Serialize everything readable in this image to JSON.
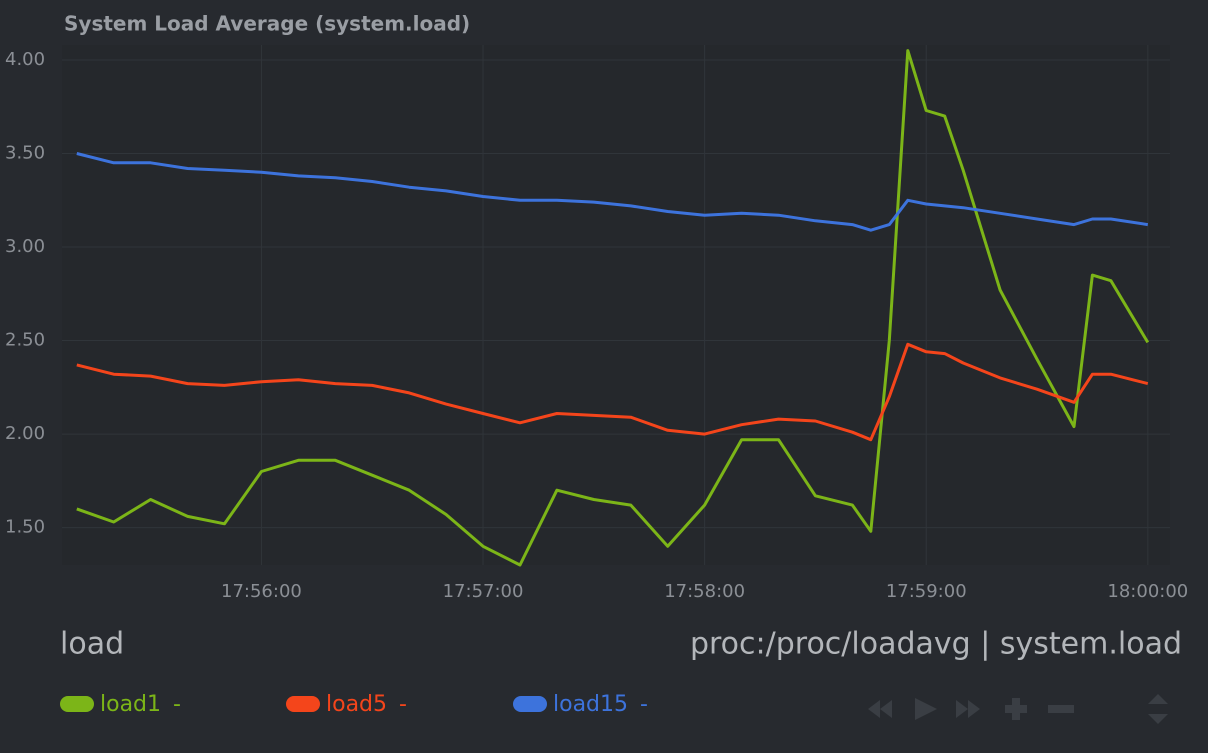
{
  "chart_data": {
    "type": "line",
    "title": "System Load Average (system.load)",
    "units": "load",
    "source": "proc:/proc/loadavg | system.load",
    "x": [
      "17:55:10",
      "17:55:20",
      "17:55:30",
      "17:55:40",
      "17:55:50",
      "17:56:00",
      "17:56:10",
      "17:56:20",
      "17:56:30",
      "17:56:40",
      "17:56:50",
      "17:57:00",
      "17:57:10",
      "17:57:20",
      "17:57:30",
      "17:57:40",
      "17:57:50",
      "17:58:00",
      "17:58:10",
      "17:58:20",
      "17:58:30",
      "17:58:40",
      "17:58:45",
      "17:58:50",
      "17:58:55",
      "17:59:00",
      "17:59:05",
      "17:59:10",
      "17:59:20",
      "17:59:30",
      "17:59:40",
      "17:59:45",
      "17:59:50",
      "18:00:00"
    ],
    "series": [
      {
        "name": "load1",
        "current": "-",
        "color": "#7cb518",
        "values": [
          1.6,
          1.53,
          1.65,
          1.56,
          1.52,
          1.8,
          1.86,
          1.86,
          1.78,
          1.7,
          1.57,
          1.4,
          1.3,
          1.7,
          1.65,
          1.62,
          1.4,
          1.62,
          1.97,
          1.97,
          1.67,
          1.62,
          1.48,
          2.5,
          4.05,
          3.73,
          3.7,
          3.41,
          2.77,
          2.4,
          2.04,
          2.85,
          2.82,
          2.49
        ]
      },
      {
        "name": "load5",
        "current": "-",
        "color": "#f4451b",
        "values": [
          2.37,
          2.32,
          2.31,
          2.27,
          2.26,
          2.28,
          2.29,
          2.27,
          2.26,
          2.22,
          2.16,
          2.11,
          2.06,
          2.11,
          2.1,
          2.09,
          2.02,
          2.0,
          2.05,
          2.08,
          2.07,
          2.01,
          1.97,
          2.2,
          2.48,
          2.44,
          2.43,
          2.38,
          2.3,
          2.24,
          2.17,
          2.32,
          2.32,
          2.27
        ]
      },
      {
        "name": "load15",
        "current": "-",
        "color": "#3d73dc",
        "values": [
          3.5,
          3.45,
          3.45,
          3.42,
          3.41,
          3.4,
          3.38,
          3.37,
          3.35,
          3.32,
          3.3,
          3.27,
          3.25,
          3.25,
          3.24,
          3.22,
          3.19,
          3.17,
          3.18,
          3.17,
          3.14,
          3.12,
          3.09,
          3.12,
          3.25,
          3.23,
          3.22,
          3.21,
          3.18,
          3.15,
          3.12,
          3.15,
          3.15,
          3.12
        ]
      }
    ],
    "xlim": [
      "17:55:06",
      "18:00:06"
    ],
    "xticks": [
      "17:56:00",
      "17:57:00",
      "17:58:00",
      "17:59:00",
      "18:00:00"
    ],
    "ylim": [
      1.3,
      4.08
    ],
    "yticks": [
      {
        "value": 1.5,
        "label": "1.50"
      },
      {
        "value": 2,
        "label": "2.00"
      },
      {
        "value": 2.5,
        "label": "2.50"
      },
      {
        "value": 3,
        "label": "3.00"
      },
      {
        "value": 3.5,
        "label": "3.50"
      },
      {
        "value": 4,
        "label": "4.00"
      }
    ],
    "grid": true
  }
}
